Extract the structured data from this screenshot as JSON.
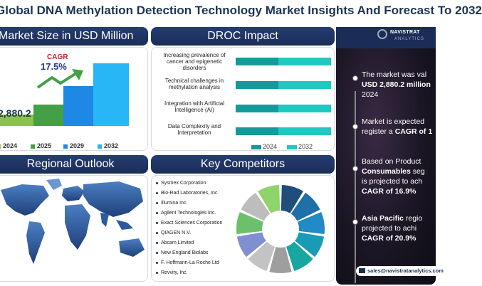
{
  "title": "Global DNA Methylation Detection Technology Market Insights And Forecast To 2032",
  "market_size": {
    "header": "Market Size in USD Million",
    "cagr_label": "CAGR",
    "cagr_value": "17.5%",
    "base_value": "2,880.2",
    "years": [
      "2024",
      "2025",
      "2029",
      "2032"
    ],
    "bar_colors": [
      "#8bc34a",
      "#43a047",
      "#1e88e5",
      "#29b6f6"
    ]
  },
  "droc": {
    "header": "DROC Impact",
    "items": [
      {
        "label": "Increasing prevalence of cancer and epigenetic disorders",
        "v2024": 0.45,
        "v2032": 1.0
      },
      {
        "label": "Technical challenges in methylation analysis",
        "v2024": 0.45,
        "v2032": 1.0
      },
      {
        "label": "Integration with Artificial Intelligence (AI)",
        "v2024": 0.45,
        "v2032": 1.0
      },
      {
        "label": "Data Complexity and Interpretation",
        "v2024": 0.45,
        "v2032": 1.0
      }
    ],
    "legend": [
      "2024",
      "2032"
    ]
  },
  "regional": {
    "header": "Regional Outlook"
  },
  "competitors": {
    "header": "Key Competitors",
    "list": [
      "Sysmex Corporation",
      "Bio-Rad Laboratories, Inc.",
      "Illumina Inc.",
      "Agilent Technologies Inc.",
      "Exact Sciences Corporation",
      "QIAGEN N.V.",
      "Abcam Limited",
      "New England Biolabs",
      "F. Hoffmann-La Roche Ltd",
      "Revvity, Inc."
    ],
    "donut_colors": [
      "#1e4e79",
      "#1f6fa8",
      "#2389c7",
      "#1a9bb5",
      "#17a6a0",
      "#9e9e9e",
      "#c3c3c3",
      "#7f8fd0",
      "#6cc06b",
      "#bdbdbd",
      "#8fd46a"
    ]
  },
  "brand": {
    "name": "NAVISTRAT",
    "sub": "ANALYTICS"
  },
  "insights": {
    "i1": {
      "text_a": "The market was val",
      "text_b": "USD 2,880.2 million",
      "text_c": "2024"
    },
    "i2": {
      "text_a": "Market is expected",
      "text_b": "register a ",
      "text_b_bold": "CAGR of 1"
    },
    "i3": {
      "text_a": "Based on Product",
      "text_b": "Consumables",
      "text_b2": " seg",
      "text_c": "is projected to ach",
      "text_d": "CAGR of 16.9%"
    },
    "i4": {
      "text_a": "Asia Pacific",
      "text_a2": " regio",
      "text_b": "projected to achi",
      "text_c": "CAGR of 20.9%"
    }
  },
  "email": "sales@navistratanalytics.com"
}
